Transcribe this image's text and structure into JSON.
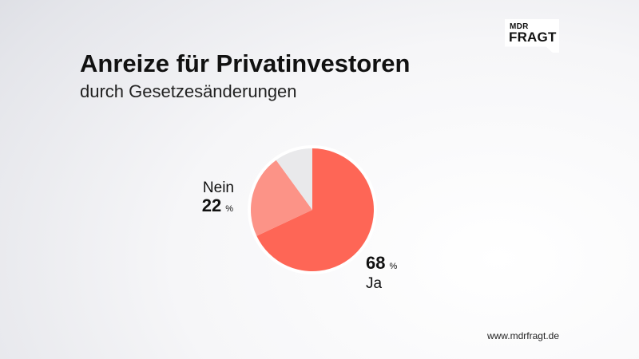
{
  "title": "Anreize für Privatinvestoren",
  "subtitle": "durch Gesetzesänderungen",
  "logo": {
    "line1": "MDR",
    "line2": "FRAGT"
  },
  "footer": "www.mdrfragt.de",
  "chart_data": {
    "type": "pie",
    "title": "Anreize für Privatinvestoren",
    "subtitle": "durch Gesetzesänderungen",
    "unit": "%",
    "start": "top",
    "direction": "clockwise",
    "slices": [
      {
        "label": "Ja",
        "value": 68,
        "color": "#fe6656",
        "show_label": true
      },
      {
        "label": "Nein",
        "value": 22,
        "color": "#fc9387",
        "show_label": true
      },
      {
        "label": "",
        "value": 10,
        "color": "#e9e9eb",
        "show_label": false
      }
    ]
  }
}
